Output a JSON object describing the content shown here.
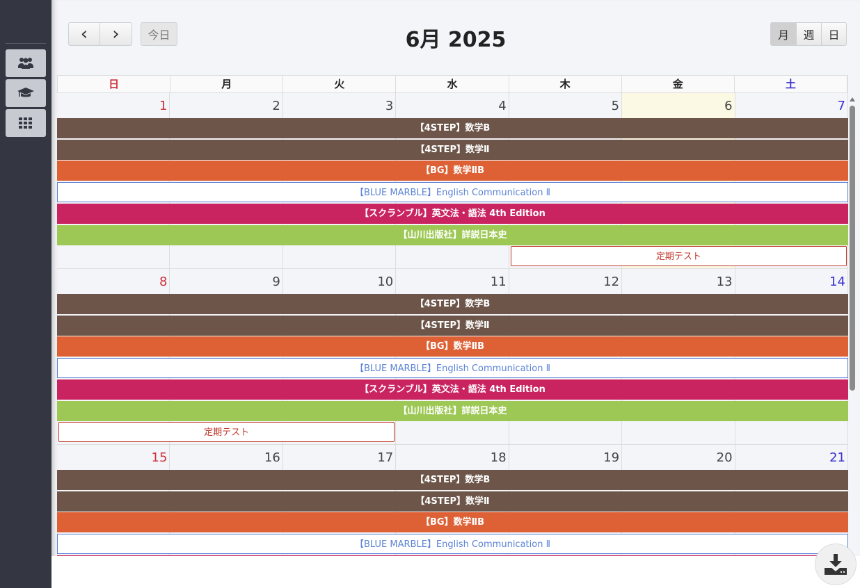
{
  "sidebar": {
    "items": [
      {
        "icon": "users-icon"
      },
      {
        "icon": "graduation-cap-icon"
      },
      {
        "icon": "grid-icon"
      }
    ]
  },
  "toolbar": {
    "prev": "‹",
    "next": "›",
    "today": "今日",
    "title": "6月 2025",
    "views": [
      "月",
      "週",
      "日"
    ],
    "active_view": "月"
  },
  "weekdays": [
    "日",
    "月",
    "火",
    "水",
    "木",
    "金",
    "土"
  ],
  "colors": {
    "sunday": "#d0303a",
    "saturday": "#3a2fd0",
    "today_bg": "#fbf9e3"
  },
  "today": 6,
  "weeks": [
    {
      "days": [
        1,
        2,
        3,
        4,
        5,
        6,
        7
      ],
      "events": [
        {
          "title": "【4STEP】数学B",
          "start": 0,
          "span": 7,
          "color": "#6d5649"
        },
        {
          "title": "【4STEP】数学Ⅱ",
          "start": 0,
          "span": 7,
          "color": "#6d5649"
        },
        {
          "title": "【BG】数学ⅡB",
          "start": 0,
          "span": 7,
          "color": "#dd6135"
        },
        {
          "title": "【BLUE MARBLE】English Communication Ⅱ",
          "start": 0,
          "span": 7,
          "color": "#5b83d6",
          "outline": true
        },
        {
          "title": "【スクランブル】英文法・語法 4th Edition",
          "start": 0,
          "span": 7,
          "color": "#c9245f"
        },
        {
          "title": "【山川出版社】詳説日本史",
          "start": 0,
          "span": 7,
          "color": "#9dc855"
        },
        {
          "title": "定期テスト",
          "start": 4,
          "span": 3,
          "color": "#c0392b",
          "outline": true
        }
      ]
    },
    {
      "days": [
        8,
        9,
        10,
        11,
        12,
        13,
        14
      ],
      "events": [
        {
          "title": "【4STEP】数学B",
          "start": 0,
          "span": 7,
          "color": "#6d5649"
        },
        {
          "title": "【4STEP】数学Ⅱ",
          "start": 0,
          "span": 7,
          "color": "#6d5649"
        },
        {
          "title": "【BG】数学ⅡB",
          "start": 0,
          "span": 7,
          "color": "#dd6135"
        },
        {
          "title": "【BLUE MARBLE】English Communication Ⅱ",
          "start": 0,
          "span": 7,
          "color": "#5b83d6",
          "outline": true
        },
        {
          "title": "【スクランブル】英文法・語法 4th Edition",
          "start": 0,
          "span": 7,
          "color": "#c9245f"
        },
        {
          "title": "【山川出版社】詳説日本史",
          "start": 0,
          "span": 7,
          "color": "#9dc855"
        },
        {
          "title": "定期テスト",
          "start": 0,
          "span": 3,
          "color": "#c0392b",
          "outline": true
        }
      ]
    },
    {
      "days": [
        15,
        16,
        17,
        18,
        19,
        20,
        21
      ],
      "events": [
        {
          "title": "【4STEP】数学B",
          "start": 0,
          "span": 7,
          "color": "#6d5649"
        },
        {
          "title": "【4STEP】数学Ⅱ",
          "start": 0,
          "span": 7,
          "color": "#6d5649"
        },
        {
          "title": "【BG】数学ⅡB",
          "start": 0,
          "span": 7,
          "color": "#dd6135"
        },
        {
          "title": "【BLUE MARBLE】English Communication Ⅱ",
          "start": 0,
          "span": 7,
          "color": "#5b83d6",
          "outline": true
        },
        {
          "title": "",
          "start": 0,
          "span": 7,
          "color": "#c9245f"
        }
      ]
    }
  ],
  "download": {
    "icon": "download-icon"
  }
}
